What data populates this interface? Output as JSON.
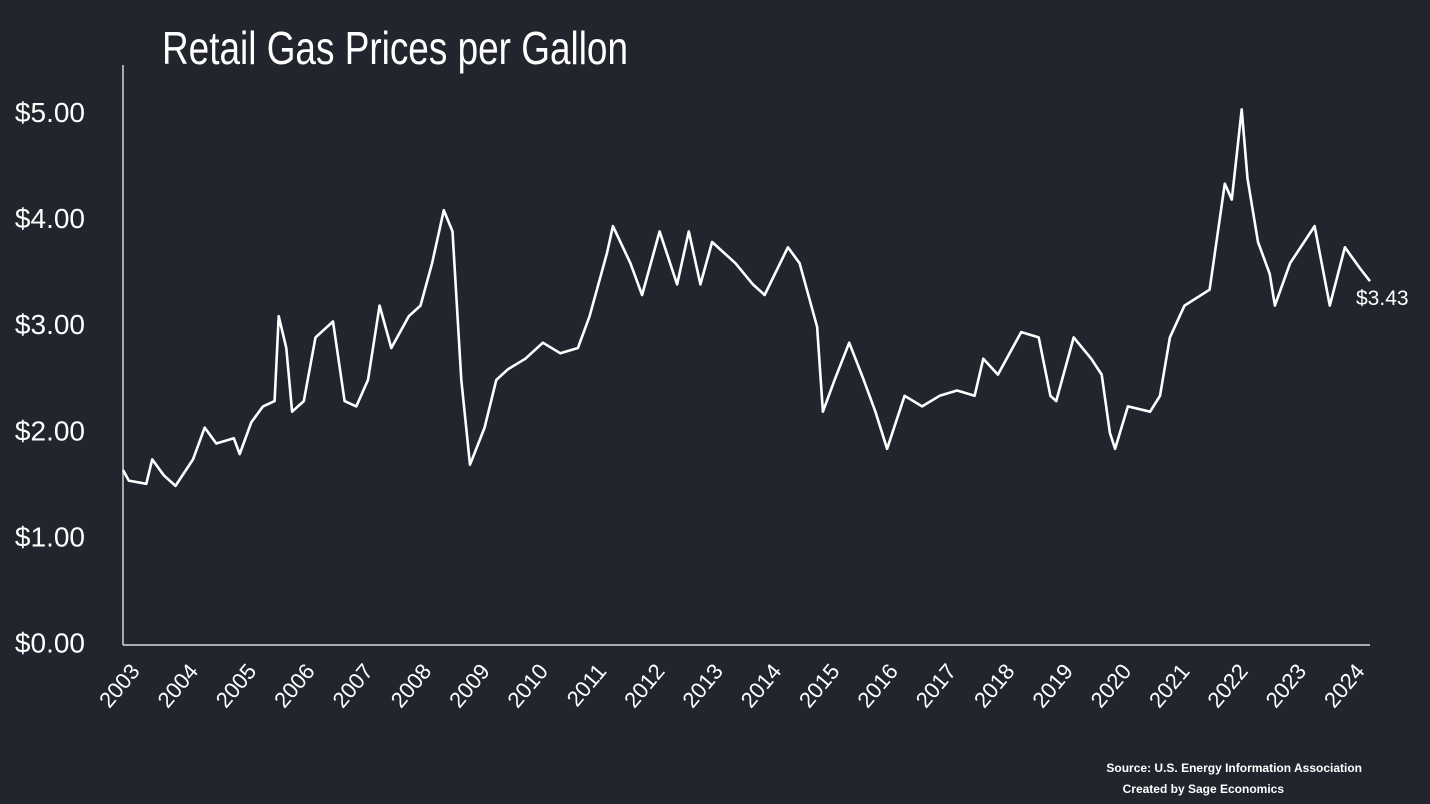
{
  "chart_data": {
    "type": "line",
    "title": "Retail Gas Prices per Gallon",
    "source": "Source: U.S. Energy Information Association",
    "credit": "Created by Sage Economics",
    "last_value_label": "$3.43",
    "xlim": [
      2003.27,
      2024.65
    ],
    "ylim": [
      0,
      5.45
    ],
    "xticks": [
      {
        "value": 2003.5,
        "label": "2003"
      },
      {
        "value": 2004.5,
        "label": "2004"
      },
      {
        "value": 2005.5,
        "label": "2005"
      },
      {
        "value": 2006.5,
        "label": "2006"
      },
      {
        "value": 2007.5,
        "label": "2007"
      },
      {
        "value": 2008.5,
        "label": "2008"
      },
      {
        "value": 2009.5,
        "label": "2009"
      },
      {
        "value": 2010.5,
        "label": "2010"
      },
      {
        "value": 2011.5,
        "label": "2011"
      },
      {
        "value": 2012.5,
        "label": "2012"
      },
      {
        "value": 2013.5,
        "label": "2013"
      },
      {
        "value": 2014.5,
        "label": "2014"
      },
      {
        "value": 2015.5,
        "label": "2015"
      },
      {
        "value": 2016.5,
        "label": "2016"
      },
      {
        "value": 2017.5,
        "label": "2017"
      },
      {
        "value": 2018.5,
        "label": "2018"
      },
      {
        "value": 2019.5,
        "label": "2019"
      },
      {
        "value": 2020.5,
        "label": "2020"
      },
      {
        "value": 2021.5,
        "label": "2021"
      },
      {
        "value": 2022.5,
        "label": "2022"
      },
      {
        "value": 2023.5,
        "label": "2023"
      },
      {
        "value": 2024.5,
        "label": "2024"
      }
    ],
    "yticks": [
      {
        "value": 0,
        "label": "$0.00"
      },
      {
        "value": 1,
        "label": "$1.00"
      },
      {
        "value": 2,
        "label": "$2.00"
      },
      {
        "value": 3,
        "label": "$3.00"
      },
      {
        "value": 4,
        "label": "$4.00"
      },
      {
        "value": 5,
        "label": "$5.00"
      }
    ],
    "grid": false,
    "color": "#ffffff",
    "x": [
      2003.27,
      2003.37,
      2003.67,
      2003.77,
      2003.97,
      2004.17,
      2004.47,
      2004.67,
      2004.87,
      2005.17,
      2005.27,
      2005.47,
      2005.67,
      2005.87,
      2005.94,
      2006.07,
      2006.17,
      2006.37,
      2006.57,
      2006.87,
      2007.07,
      2007.27,
      2007.47,
      2007.67,
      2007.87,
      2008.17,
      2008.37,
      2008.57,
      2008.77,
      2008.92,
      2009.07,
      2009.22,
      2009.47,
      2009.67,
      2009.87,
      2010.17,
      2010.47,
      2010.77,
      2011.07,
      2011.27,
      2011.57,
      2011.67,
      2011.97,
      2012.17,
      2012.47,
      2012.77,
      2012.97,
      2013.17,
      2013.37,
      2013.77,
      2014.07,
      2014.27,
      2014.67,
      2014.87,
      2015.17,
      2015.27,
      2015.47,
      2015.72,
      2015.97,
      2016.17,
      2016.37,
      2016.67,
      2016.97,
      2017.27,
      2017.57,
      2017.87,
      2018.02,
      2018.27,
      2018.67,
      2018.97,
      2019.17,
      2019.27,
      2019.57,
      2019.87,
      2020.05,
      2020.19,
      2020.28,
      2020.5,
      2020.88,
      2021.05,
      2021.22,
      2021.47,
      2021.9,
      2022.16,
      2022.28,
      2022.45,
      2022.55,
      2022.73,
      2022.93,
      2023.02,
      2023.28,
      2023.7,
      2023.96,
      2024.22,
      2024.48,
      2024.65
    ],
    "values": [
      1.65,
      1.55,
      1.52,
      1.75,
      1.6,
      1.5,
      1.75,
      2.05,
      1.9,
      1.95,
      1.8,
      2.1,
      2.25,
      2.3,
      3.1,
      2.8,
      2.2,
      2.3,
      2.9,
      3.05,
      2.3,
      2.25,
      2.5,
      3.2,
      2.8,
      3.1,
      3.2,
      3.6,
      4.1,
      3.9,
      2.5,
      1.7,
      2.05,
      2.5,
      2.6,
      2.7,
      2.85,
      2.75,
      2.8,
      3.1,
      3.7,
      3.95,
      3.6,
      3.3,
      3.9,
      3.4,
      3.9,
      3.4,
      3.8,
      3.6,
      3.4,
      3.3,
      3.75,
      3.6,
      3.0,
      2.2,
      2.5,
      2.85,
      2.5,
      2.2,
      1.85,
      2.35,
      2.25,
      2.35,
      2.4,
      2.35,
      2.7,
      2.55,
      2.95,
      2.9,
      2.35,
      2.3,
      2.9,
      2.7,
      2.55,
      2.0,
      1.85,
      2.25,
      2.2,
      2.35,
      2.9,
      3.2,
      3.35,
      4.35,
      4.2,
      5.05,
      4.4,
      3.8,
      3.5,
      3.2,
      3.6,
      3.95,
      3.2,
      3.75,
      3.55,
      3.43
    ]
  }
}
